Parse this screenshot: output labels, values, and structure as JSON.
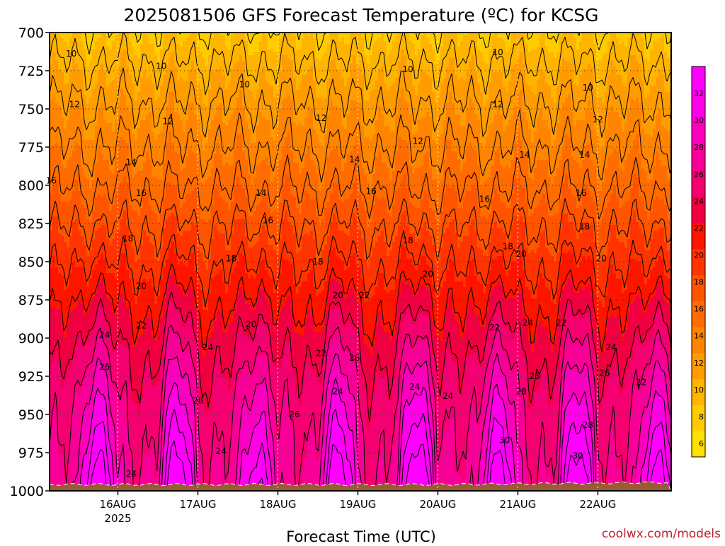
{
  "chart_data": {
    "type": "heatmap",
    "title": "2025081506 GFS Forecast Temperature (ºC) for KCSG",
    "xlabel": "Forecast Time (UTC)",
    "credit": "coolwx.com/models",
    "y_ticks": [
      700,
      725,
      750,
      775,
      800,
      825,
      850,
      875,
      900,
      925,
      950,
      975,
      1000
    ],
    "ylim": [
      700,
      1000
    ],
    "y_reversed": true,
    "x_range_hours": [
      -20.5,
      166
    ],
    "x_ticks": [
      {
        "label": "16AUG",
        "hour": 0
      },
      {
        "label": "17AUG",
        "hour": 24
      },
      {
        "label": "18AUG",
        "hour": 48
      },
      {
        "label": "19AUG",
        "hour": 72
      },
      {
        "label": "20AUG",
        "hour": 96
      },
      {
        "label": "21AUG",
        "hour": 120
      },
      {
        "label": "22AUG",
        "hour": 144
      }
    ],
    "x_sublabel": "2025",
    "grid": true,
    "colorbar": {
      "placement": "right",
      "range": [
        5,
        34
      ],
      "ticks": [
        6,
        8,
        10,
        12,
        14,
        16,
        18,
        20,
        22,
        24,
        26,
        28,
        30,
        32
      ],
      "colors": [
        "#ffe000",
        "#ffcc00",
        "#ffb400",
        "#ff9c00",
        "#ff8400",
        "#ff6c00",
        "#ff5400",
        "#ff3400",
        "#ff1400",
        "#f00040",
        "#f40070",
        "#f80098",
        "#fc00c0",
        "#ff00e8",
        "#ff00ff"
      ]
    },
    "contour_interval": 2,
    "profile_base": {
      "p": [
        700,
        725,
        750,
        775,
        800,
        825,
        850,
        875,
        900,
        925,
        950,
        975,
        1000
      ],
      "t": [
        8.5,
        10.5,
        12.3,
        14.0,
        15.8,
        17.8,
        19.6,
        21.5,
        23.2,
        24.8,
        26.0,
        27.0,
        28.0
      ]
    },
    "daily_max_near_surface": [
      {
        "date": "16AUG",
        "t": 33
      },
      {
        "date": "17AUG",
        "t": 31
      },
      {
        "date": "18AUG",
        "t": 33
      },
      {
        "date": "19AUG",
        "t": 34
      },
      {
        "date": "20AUG",
        "t": 33
      },
      {
        "date": "21AUG",
        "t": 33
      },
      {
        "date": "22AUG",
        "t": 33
      }
    ],
    "contour_labels": [
      {
        "text": "10",
        "hour": -14,
        "p": 714
      },
      {
        "text": "10",
        "hour": 13,
        "p": 722
      },
      {
        "text": "10",
        "hour": 38,
        "p": 734
      },
      {
        "text": "10",
        "hour": 87,
        "p": 724
      },
      {
        "text": "10",
        "hour": 114,
        "p": 713
      },
      {
        "text": "10",
        "hour": 141,
        "p": 736
      },
      {
        "text": "12",
        "hour": -13,
        "p": 747
      },
      {
        "text": "12",
        "hour": 15,
        "p": 758
      },
      {
        "text": "12",
        "hour": 61,
        "p": 756
      },
      {
        "text": "12",
        "hour": 90,
        "p": 771
      },
      {
        "text": "12",
        "hour": 114,
        "p": 747
      },
      {
        "text": "12",
        "hour": 144,
        "p": 757
      },
      {
        "text": "14",
        "hour": 4,
        "p": 785
      },
      {
        "text": "14",
        "hour": 43,
        "p": 805
      },
      {
        "text": "14",
        "hour": 71,
        "p": 783
      },
      {
        "text": "14",
        "hour": 122,
        "p": 780
      },
      {
        "text": "14",
        "hour": 140,
        "p": 780
      },
      {
        "text": "16",
        "hour": -20,
        "p": 797
      },
      {
        "text": "16",
        "hour": 7,
        "p": 805
      },
      {
        "text": "16",
        "hour": 45,
        "p": 823
      },
      {
        "text": "16",
        "hour": 76,
        "p": 804
      },
      {
        "text": "16",
        "hour": 110,
        "p": 809
      },
      {
        "text": "16",
        "hour": 139,
        "p": 805
      },
      {
        "text": "18",
        "hour": 3,
        "p": 835
      },
      {
        "text": "18",
        "hour": 34,
        "p": 848
      },
      {
        "text": "18",
        "hour": 60,
        "p": 850
      },
      {
        "text": "18",
        "hour": 87,
        "p": 836
      },
      {
        "text": "18",
        "hour": 117,
        "p": 840
      },
      {
        "text": "18",
        "hour": 140,
        "p": 827
      },
      {
        "text": "20",
        "hour": 7,
        "p": 866
      },
      {
        "text": "20",
        "hour": 40,
        "p": 891
      },
      {
        "text": "20",
        "hour": 66,
        "p": 872
      },
      {
        "text": "20",
        "hour": 93,
        "p": 858
      },
      {
        "text": "20",
        "hour": 121,
        "p": 845
      },
      {
        "text": "20",
        "hour": 145,
        "p": 848
      },
      {
        "text": "22",
        "hour": 7,
        "p": 892
      },
      {
        "text": "22",
        "hour": 74,
        "p": 872
      },
      {
        "text": "22",
        "hour": 61,
        "p": 910
      },
      {
        "text": "22",
        "hour": 113,
        "p": 893
      },
      {
        "text": "22",
        "hour": 133,
        "p": 890
      },
      {
        "text": "22",
        "hour": 157,
        "p": 929
      },
      {
        "text": "24",
        "hour": -4,
        "p": 898
      },
      {
        "text": "24",
        "hour": 27,
        "p": 906
      },
      {
        "text": "24",
        "hour": 66,
        "p": 935
      },
      {
        "text": "24",
        "hour": 89,
        "p": 932
      },
      {
        "text": "24",
        "hour": 99,
        "p": 938
      },
      {
        "text": "24",
        "hour": 123,
        "p": 890
      },
      {
        "text": "24",
        "hour": 148,
        "p": 906
      },
      {
        "text": "24",
        "hour": 31,
        "p": 974
      },
      {
        "text": "24",
        "hour": 4,
        "p": 989
      },
      {
        "text": "26",
        "hour": -4,
        "p": 919
      },
      {
        "text": "26",
        "hour": 53,
        "p": 950
      },
      {
        "text": "26",
        "hour": 71,
        "p": 913
      },
      {
        "text": "26",
        "hour": 125,
        "p": 925
      },
      {
        "text": "26",
        "hour": 146,
        "p": 923
      },
      {
        "text": "28",
        "hour": 24,
        "p": 941
      },
      {
        "text": "28",
        "hour": 121,
        "p": 935
      },
      {
        "text": "28",
        "hour": 141,
        "p": 957
      },
      {
        "text": "30",
        "hour": 116,
        "p": 967
      },
      {
        "text": "30",
        "hour": 138,
        "p": 977
      }
    ]
  }
}
